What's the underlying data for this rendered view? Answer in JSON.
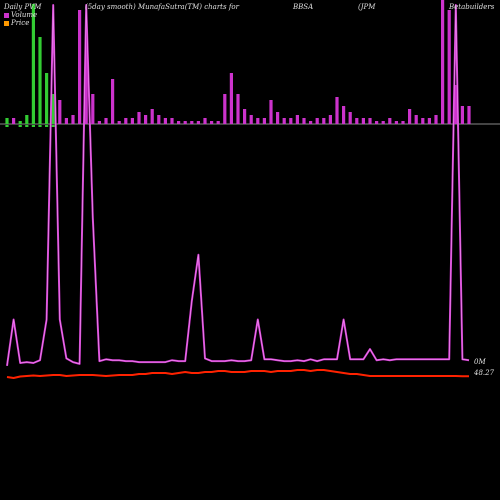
{
  "header": {
    "left": "Daily PVM",
    "mid": "(5day smooth) MunafaSutra(TM) charts for",
    "ticker": "BBSA",
    "right1": "(JPM",
    "right2": "Betabuilders"
  },
  "legend": {
    "volume_label": "Volume",
    "price_label": "Price",
    "volume_color": "#cc33cc",
    "price_color": "#ff9900"
  },
  "labels": {
    "volume_axis": "0M",
    "price_last": "48.27"
  },
  "colors": {
    "background": "#000000",
    "bar_up": "#cc33cc",
    "bar_down": "#33cc33",
    "volume_line": "#cc33cc",
    "price_line": "#ff2200",
    "baseline": "#888888"
  },
  "chart_data": {
    "type": "bar",
    "title": "",
    "xlabel": "",
    "ylabel": "",
    "volume_bars": [
      2,
      2,
      1,
      3,
      40,
      29,
      17,
      10,
      8,
      2,
      3,
      38,
      26,
      10,
      1,
      2,
      15,
      1,
      2,
      2,
      4,
      3,
      5,
      3,
      2,
      2,
      1,
      1,
      1,
      1,
      2,
      1,
      1,
      10,
      17,
      10,
      5,
      3,
      2,
      2,
      8,
      4,
      2,
      2,
      3,
      2,
      1,
      2,
      2,
      3,
      9,
      6,
      4,
      2,
      2,
      2,
      1,
      1,
      2,
      1,
      1,
      5,
      3,
      2,
      2,
      3,
      46,
      38,
      13,
      6,
      6
    ],
    "volume_line": [
      10,
      60,
      13,
      14,
      13,
      16,
      60,
      400,
      60,
      18,
      14,
      12,
      400,
      170,
      15,
      17,
      16,
      16,
      15,
      15,
      14,
      14,
      14,
      14,
      14,
      16,
      15,
      15,
      80,
      130,
      18,
      15,
      15,
      15,
      16,
      15,
      15,
      16,
      60,
      17,
      17,
      16,
      15,
      15,
      16,
      15,
      17,
      15,
      17,
      17,
      17,
      60,
      17,
      17,
      17,
      28,
      16,
      17,
      16,
      17,
      17,
      17,
      17,
      17,
      17,
      17,
      17,
      17,
      400,
      17,
      16
    ],
    "price_line": [
      48.2,
      48.1,
      48.25,
      48.3,
      48.35,
      48.3,
      48.35,
      48.4,
      48.4,
      48.3,
      48.35,
      48.4,
      48.4,
      48.4,
      48.35,
      48.3,
      48.35,
      48.4,
      48.4,
      48.4,
      48.5,
      48.5,
      48.6,
      48.6,
      48.6,
      48.5,
      48.6,
      48.7,
      48.6,
      48.6,
      48.7,
      48.7,
      48.8,
      48.8,
      48.7,
      48.7,
      48.7,
      48.8,
      48.8,
      48.8,
      48.7,
      48.8,
      48.8,
      48.8,
      48.9,
      48.9,
      48.8,
      48.9,
      48.9,
      48.8,
      48.7,
      48.6,
      48.5,
      48.5,
      48.4,
      48.3,
      48.3,
      48.3,
      48.3,
      48.3,
      48.3,
      48.3,
      48.3,
      48.3,
      48.3,
      48.3,
      48.3,
      48.3,
      48.3,
      48.27,
      48.27
    ],
    "bar_down_indices": [
      0,
      2,
      3,
      4,
      5,
      6,
      7
    ]
  }
}
